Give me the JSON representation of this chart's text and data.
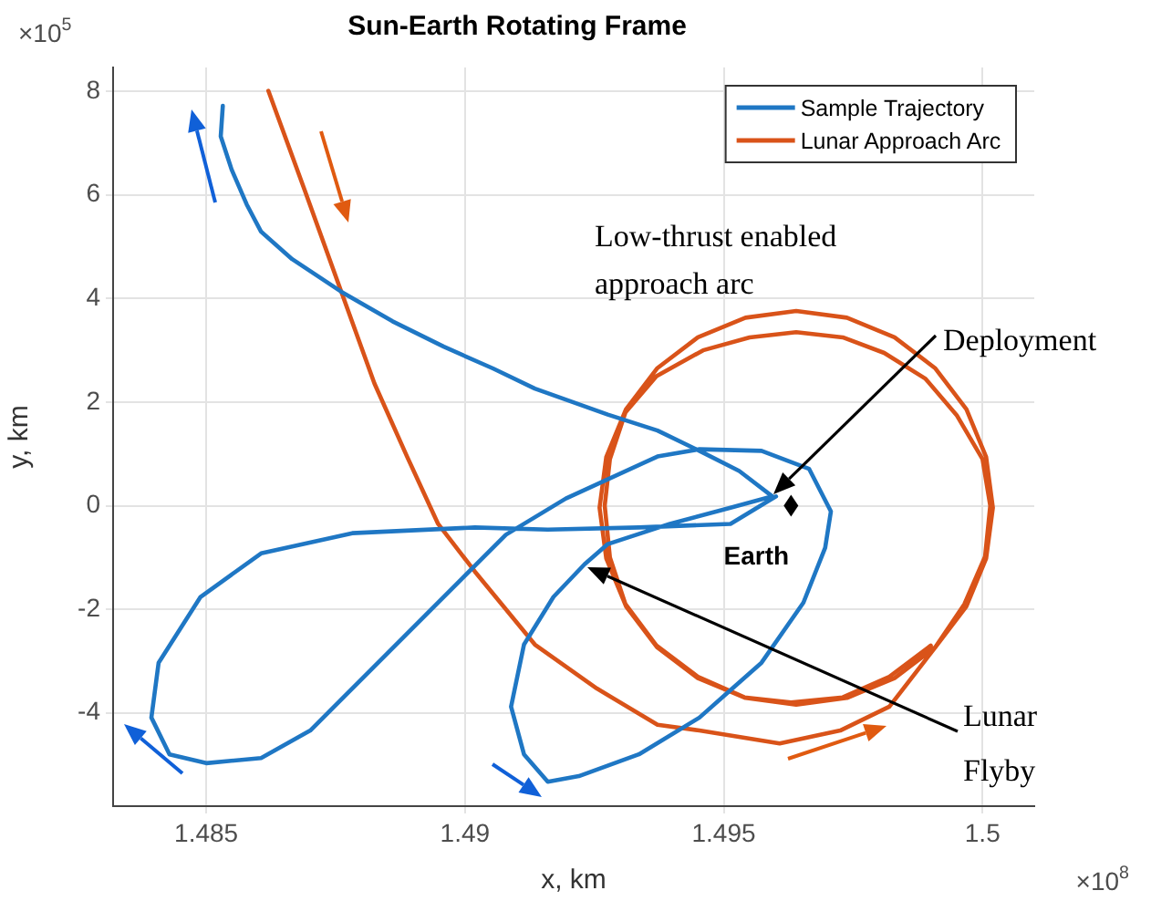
{
  "chart_data": {
    "type": "line",
    "title": "Sun-Earth Rotating Frame",
    "xlabel": "x, km",
    "ylabel": "y, km",
    "xlim": [
      1.4832,
      1.501
    ],
    "ylim": [
      -5.8,
      8.46
    ],
    "xticks": [
      1.485,
      1.49,
      1.495,
      1.5
    ],
    "yticks": [
      -4,
      -2,
      0,
      2,
      4,
      6,
      8
    ],
    "grid": true,
    "legend": "top right",
    "series": [
      {
        "name": "Sample Trajectory",
        "color": "#1f77c4",
        "x": [
          1.49601,
          1.49513,
          1.49336,
          1.4916,
          1.49019,
          1.48782,
          1.48606,
          1.48489,
          1.48408,
          1.48394,
          1.48429,
          1.485,
          1.48606,
          1.48701,
          1.48807,
          1.48902,
          1.48994,
          1.49079,
          1.49195,
          1.49372,
          1.49453,
          1.49573,
          1.49665,
          1.49707,
          1.49696,
          1.49654,
          1.49573,
          1.49453,
          1.49336,
          1.4922,
          1.4916,
          1.49114,
          1.49089,
          1.49114,
          1.49171,
          1.49231,
          1.49276,
          1.49396,
          1.49513,
          1.49594,
          1.4953,
          1.49453,
          1.49372,
          1.49276,
          1.49135,
          1.49054,
          1.48959,
          1.4886,
          1.48761,
          1.48666,
          1.48606,
          1.48578,
          1.48549,
          1.48528,
          1.48532
        ],
        "values": [
          0.18,
          -0.35,
          -0.42,
          -0.46,
          -0.42,
          -0.53,
          -0.92,
          -1.76,
          -3.03,
          -4.09,
          -4.8,
          -4.97,
          -4.87,
          -4.34,
          -3.28,
          -2.33,
          -1.41,
          -0.56,
          0.14,
          0.95,
          1.09,
          1.06,
          0.71,
          -0.11,
          -0.81,
          -1.87,
          -3.03,
          -4.09,
          -4.8,
          -5.22,
          -5.33,
          -4.8,
          -3.88,
          -2.68,
          -1.76,
          -1.13,
          -0.74,
          -0.35,
          -0.04,
          0.18,
          0.67,
          1.06,
          1.45,
          1.76,
          2.26,
          2.65,
          3.07,
          3.56,
          4.13,
          4.76,
          5.29,
          5.82,
          6.49,
          7.13,
          7.72
        ]
      },
      {
        "name": "Lunar Approach Arc",
        "color": "#d95319",
        "x": [
          1.4862,
          1.48691,
          1.48761,
          1.48825,
          1.48888,
          1.48948,
          1.49019,
          1.49135,
          1.49255,
          1.49372,
          1.49453,
          1.49608,
          1.49725,
          1.4982,
          1.49909,
          1.49969,
          1.50007,
          1.5002,
          1.50007,
          1.49969,
          1.49909,
          1.4983,
          1.49738,
          1.4964,
          1.49542,
          1.4945,
          1.49371,
          1.49311,
          1.49273,
          1.4926,
          1.49273,
          1.49311,
          1.49371,
          1.4945,
          1.49542,
          1.4964,
          1.49738,
          1.4983,
          1.49909,
          1.49965,
          1.50005,
          1.50015,
          1.5,
          1.4995,
          1.4989,
          1.4981,
          1.4973,
          1.4964,
          1.4955,
          1.4946,
          1.4937,
          1.4931,
          1.4928,
          1.4927,
          1.4928,
          1.4931,
          1.4937,
          1.4945,
          1.4954,
          1.4963,
          1.4973,
          1.4982,
          1.499
        ],
        "values": [
          8.01,
          6.07,
          4.13,
          2.36,
          0.95,
          -0.35,
          -1.27,
          -2.68,
          -3.53,
          -4.23,
          -4.34,
          -4.59,
          -4.34,
          -3.88,
          -2.73,
          -1.94,
          -1.02,
          -0.04,
          0.94,
          1.86,
          2.65,
          3.25,
          3.63,
          3.76,
          3.63,
          3.25,
          2.65,
          1.86,
          0.94,
          -0.04,
          -1.02,
          -1.94,
          -2.73,
          -3.33,
          -3.71,
          -3.84,
          -3.71,
          -3.33,
          -2.73,
          -1.9,
          -0.98,
          0,
          0.9,
          1.75,
          2.45,
          2.95,
          3.25,
          3.35,
          3.25,
          3.0,
          2.5,
          1.8,
          0.9,
          0,
          -1.0,
          -1.9,
          -2.7,
          -3.3,
          -3.7,
          -3.8,
          -3.7,
          -3.3,
          -2.7
        ]
      }
    ],
    "annotations": [
      "×10$^{5}$",
      "×10$^{8}$",
      "Low-thrust enabled approach arc",
      "Deployment",
      {
        "text": "Earth",
        "x": 1.4963,
        "y": 0
      },
      "Lunar Flyby"
    ]
  }
}
